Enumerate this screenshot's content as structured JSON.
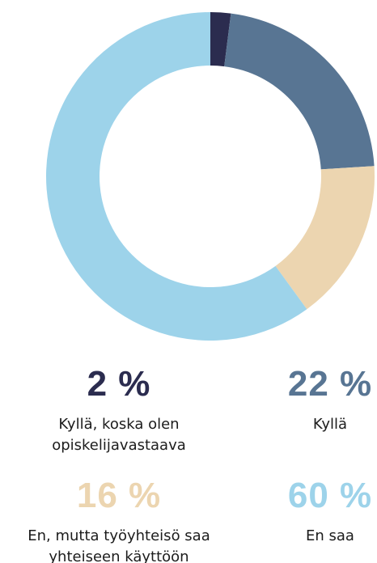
{
  "chart_data": {
    "type": "donut",
    "categories": [
      "Kyllä, koska olen opiskelijavastaava",
      "Kyllä",
      "En, mutta työyhteisö saa yhteiseen käyttöön",
      "En saa"
    ],
    "values": [
      2,
      22,
      16,
      60
    ],
    "value_labels": [
      "2 %",
      "22 %",
      "16 %",
      "60 %"
    ],
    "colors": [
      "#2b2c4f",
      "#587593",
      "#ecd5b0",
      "#9dd3ea"
    ]
  }
}
